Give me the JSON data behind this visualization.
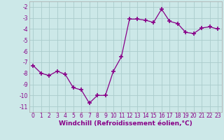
{
  "x": [
    0,
    1,
    2,
    3,
    4,
    5,
    6,
    7,
    8,
    9,
    10,
    11,
    12,
    13,
    14,
    15,
    16,
    17,
    18,
    19,
    20,
    21,
    22,
    23
  ],
  "y": [
    -7.3,
    -8.0,
    -8.2,
    -7.8,
    -8.1,
    -9.3,
    -9.5,
    -10.7,
    -10.0,
    -10.0,
    -7.8,
    -6.5,
    -3.1,
    -3.1,
    -3.2,
    -3.4,
    -2.2,
    -3.3,
    -3.5,
    -4.3,
    -4.4,
    -3.9,
    -3.8,
    -4.0
  ],
  "xlim": [
    -0.5,
    23.5
  ],
  "ylim": [
    -11.5,
    -1.5
  ],
  "yticks": [
    -11,
    -10,
    -9,
    -8,
    -7,
    -6,
    -5,
    -4,
    -3,
    -2
  ],
  "xticks": [
    0,
    1,
    2,
    3,
    4,
    5,
    6,
    7,
    8,
    9,
    10,
    11,
    12,
    13,
    14,
    15,
    16,
    17,
    18,
    19,
    20,
    21,
    22,
    23
  ],
  "line_color": "#880088",
  "marker": "+",
  "marker_size": 4,
  "bg_color": "#cce8e8",
  "grid_color": "#aacccc",
  "xlabel": "Windchill (Refroidissement éolien,°C)",
  "xlabel_color": "#880088",
  "xlabel_fontsize": 6.5,
  "tick_fontsize": 5.5
}
